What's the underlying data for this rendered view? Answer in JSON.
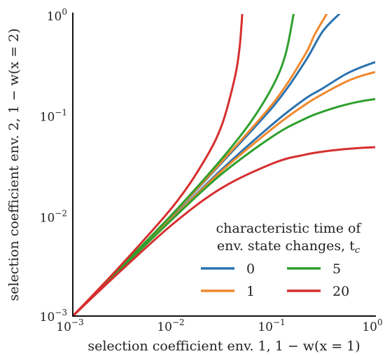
{
  "chart_data": {
    "type": "line",
    "xscale": "log",
    "yscale": "log",
    "xlim": [
      0.001,
      1
    ],
    "ylim": [
      0.001,
      1
    ],
    "grid": false,
    "xlabel": "selection coefficient env. 1, 1 − w(x = 1)",
    "ylabel": "selection coefficient env. 2, 1 − w(x = 2)",
    "xticks": [
      {
        "value": 0.001,
        "base": "10",
        "exp": "−3"
      },
      {
        "value": 0.01,
        "base": "10",
        "exp": "−2"
      },
      {
        "value": 0.1,
        "base": "10",
        "exp": "−1"
      },
      {
        "value": 1,
        "base": "10",
        "exp": "0"
      }
    ],
    "yticks": [
      {
        "value": 0.001,
        "base": "10",
        "exp": "−3"
      },
      {
        "value": 0.01,
        "base": "10",
        "exp": "−2"
      },
      {
        "value": 0.1,
        "base": "10",
        "exp": "−1"
      },
      {
        "value": 1,
        "base": "10",
        "exp": "0"
      }
    ],
    "legend": {
      "placement": "lower-right",
      "title_line1": "characteristic time of",
      "title_line2": "env. state changes, t",
      "title_sub": "c"
    },
    "series": [
      {
        "name": "0",
        "color": "#2b73b0",
        "branch": "upper",
        "x": [
          0.001,
          0.003,
          0.01,
          0.03,
          0.1,
          0.2,
          0.3,
          0.44
        ],
        "y": [
          0.001,
          0.00303,
          0.0103,
          0.0333,
          0.125,
          0.333,
          0.667,
          1.0
        ]
      },
      {
        "name": "0",
        "color": "#2b73b0",
        "branch": "lower",
        "x": [
          0.001,
          0.003,
          0.01,
          0.03,
          0.1,
          0.2,
          0.3,
          0.5,
          0.7,
          1.0
        ],
        "y": [
          0.001,
          0.00297,
          0.0097,
          0.0286,
          0.0833,
          0.143,
          0.182,
          0.25,
          0.292,
          0.333
        ]
      },
      {
        "name": "1",
        "color": "#f0892d",
        "branch": "upper",
        "x": [
          0.001,
          0.003,
          0.01,
          0.03,
          0.1,
          0.2,
          0.25,
          0.33
        ],
        "y": [
          0.001,
          0.00304,
          0.0104,
          0.0342,
          0.135,
          0.39,
          0.62,
          1.0
        ]
      },
      {
        "name": "1",
        "color": "#f0892d",
        "branch": "lower",
        "x": [
          0.001,
          0.003,
          0.01,
          0.03,
          0.1,
          0.2,
          0.3,
          0.5,
          0.7,
          1.0
        ],
        "y": [
          0.001,
          0.00296,
          0.00962,
          0.0276,
          0.0755,
          0.125,
          0.16,
          0.21,
          0.24,
          0.265
        ]
      },
      {
        "name": "5",
        "color": "#2ea02e",
        "branch": "upper",
        "x": [
          0.001,
          0.003,
          0.01,
          0.03,
          0.06,
          0.1,
          0.13,
          0.155
        ],
        "y": [
          0.001,
          0.00306,
          0.0106,
          0.0364,
          0.0884,
          0.207,
          0.41,
          1.0
        ]
      },
      {
        "name": "5",
        "color": "#2ea02e",
        "branch": "lower",
        "x": [
          0.001,
          0.003,
          0.01,
          0.03,
          0.1,
          0.2,
          0.3,
          0.5,
          0.7,
          1.0
        ],
        "y": [
          0.001,
          0.00294,
          0.00943,
          0.0258,
          0.0625,
          0.0909,
          0.107,
          0.125,
          0.135,
          0.143
        ]
      },
      {
        "name": "20",
        "color": "#d62f2f",
        "branch": "upper",
        "x": [
          0.001,
          0.003,
          0.01,
          0.02,
          0.03,
          0.04,
          0.045,
          0.048
        ],
        "y": [
          0.001,
          0.00319,
          0.0125,
          0.0345,
          0.0783,
          0.222,
          0.45,
          1.0
        ]
      },
      {
        "name": "20",
        "color": "#d62f2f",
        "branch": "lower",
        "x": [
          0.001,
          0.003,
          0.01,
          0.03,
          0.1,
          0.2,
          0.3,
          0.5,
          0.7,
          1.0
        ],
        "y": [
          0.001,
          0.00282,
          0.00833,
          0.0187,
          0.0333,
          0.04,
          0.0429,
          0.0455,
          0.0467,
          0.0476
        ]
      }
    ]
  }
}
